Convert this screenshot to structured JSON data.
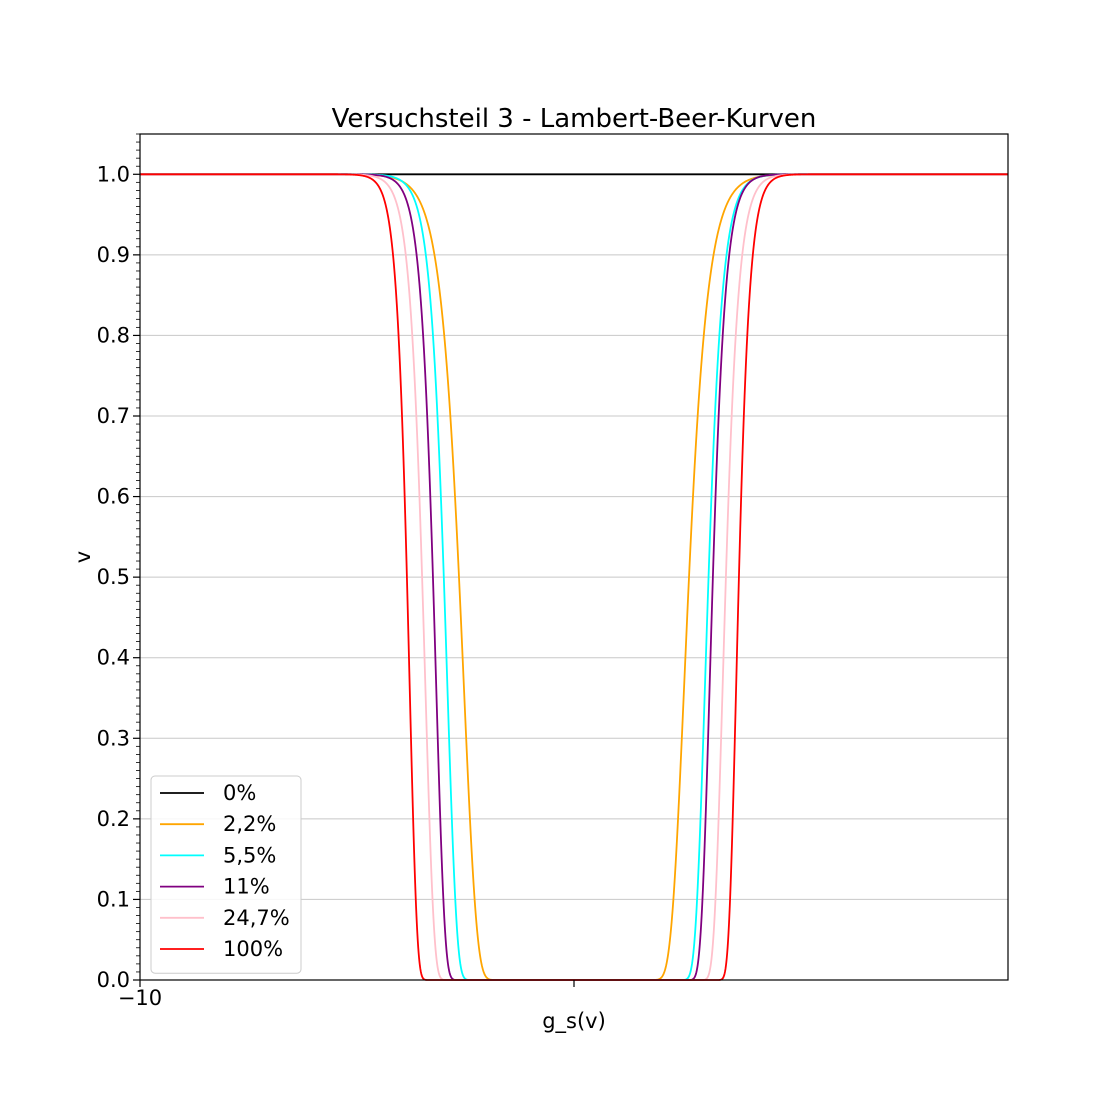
{
  "chart_data": {
    "type": "line",
    "title": "Versuchsteil 3 - Lambert-Beer-Kurven",
    "xlabel": "g_s(v)",
    "ylabel": "v",
    "xlim": [
      -10,
      10
    ],
    "ylim": [
      0,
      1.05
    ],
    "x_tick_labels": [
      {
        "value": -10,
        "label": "−10"
      },
      {
        "value": 0,
        "label": ""
      }
    ],
    "y_ticks": [
      0.0,
      0.1,
      0.2,
      0.3,
      0.4,
      0.5,
      0.6,
      0.7,
      0.8,
      0.9,
      1.0
    ],
    "y_tick_labels": [
      "0.0",
      "0.1",
      "0.2",
      "0.3",
      "0.4",
      "0.5",
      "0.6",
      "0.7",
      "0.8",
      "0.9",
      "1.0"
    ],
    "grid": "horizontal",
    "legend_position": "lower-left",
    "series": [
      {
        "name": "0%",
        "color": "#000000",
        "shape": "flat",
        "value": 1.0
      },
      {
        "name": "2,2%",
        "color": "#ffa500",
        "shape": "dip",
        "left_half_at": -2.65,
        "right_half_at": 2.65,
        "steepness": 0.3
      },
      {
        "name": "5,5%",
        "color": "#00ffff",
        "shape": "dip",
        "left_half_at": -3.0,
        "right_half_at": 3.1,
        "steepness": 0.22
      },
      {
        "name": "11%",
        "color": "#800080",
        "shape": "dip",
        "left_half_at": -3.25,
        "right_half_at": 3.2,
        "steepness": 0.2
      },
      {
        "name": "24,7%",
        "color": "#ffc0cb",
        "shape": "dip",
        "left_half_at": -3.5,
        "right_half_at": 3.5,
        "steepness": 0.2
      },
      {
        "name": "100%",
        "color": "#ff0000",
        "shape": "dip",
        "left_half_at": -3.85,
        "right_half_at": 3.8,
        "steepness": 0.17
      }
    ]
  }
}
